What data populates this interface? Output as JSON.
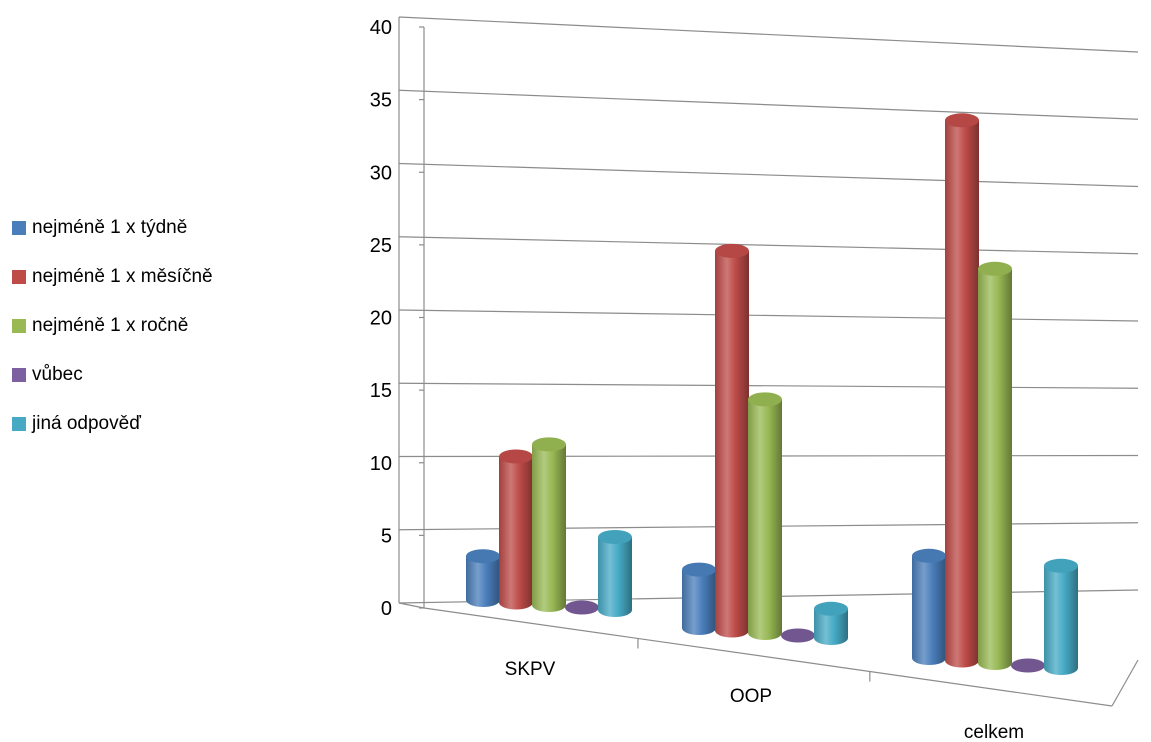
{
  "chart_data": {
    "type": "bar",
    "title": "",
    "xlabel": "",
    "ylabel": "",
    "categories": [
      "SKPV",
      "OOP",
      "celkem"
    ],
    "ylim": [
      0,
      40
    ],
    "yticks": [
      "0",
      "5",
      "10",
      "15",
      "20",
      "25",
      "30",
      "35",
      "40"
    ],
    "grid": true,
    "legend_position": "left",
    "series": [
      {
        "name": "nejméně 1 x týdně",
        "color": "#4a7ebb",
        "values": [
          3,
          4,
          7
        ]
      },
      {
        "name": "nejméně 1 x měsíčně",
        "color": "#be4b48",
        "values": [
          10,
          26,
          37
        ]
      },
      {
        "name": "nejméně 1 x ročně",
        "color": "#98b954",
        "values": [
          11,
          16,
          27
        ]
      },
      {
        "name": "vůbec",
        "color": "#7d60a0",
        "values": [
          0,
          0,
          0
        ]
      },
      {
        "name": "jiná odpověď",
        "color": "#46aac5",
        "values": [
          5,
          2,
          7
        ]
      }
    ]
  }
}
